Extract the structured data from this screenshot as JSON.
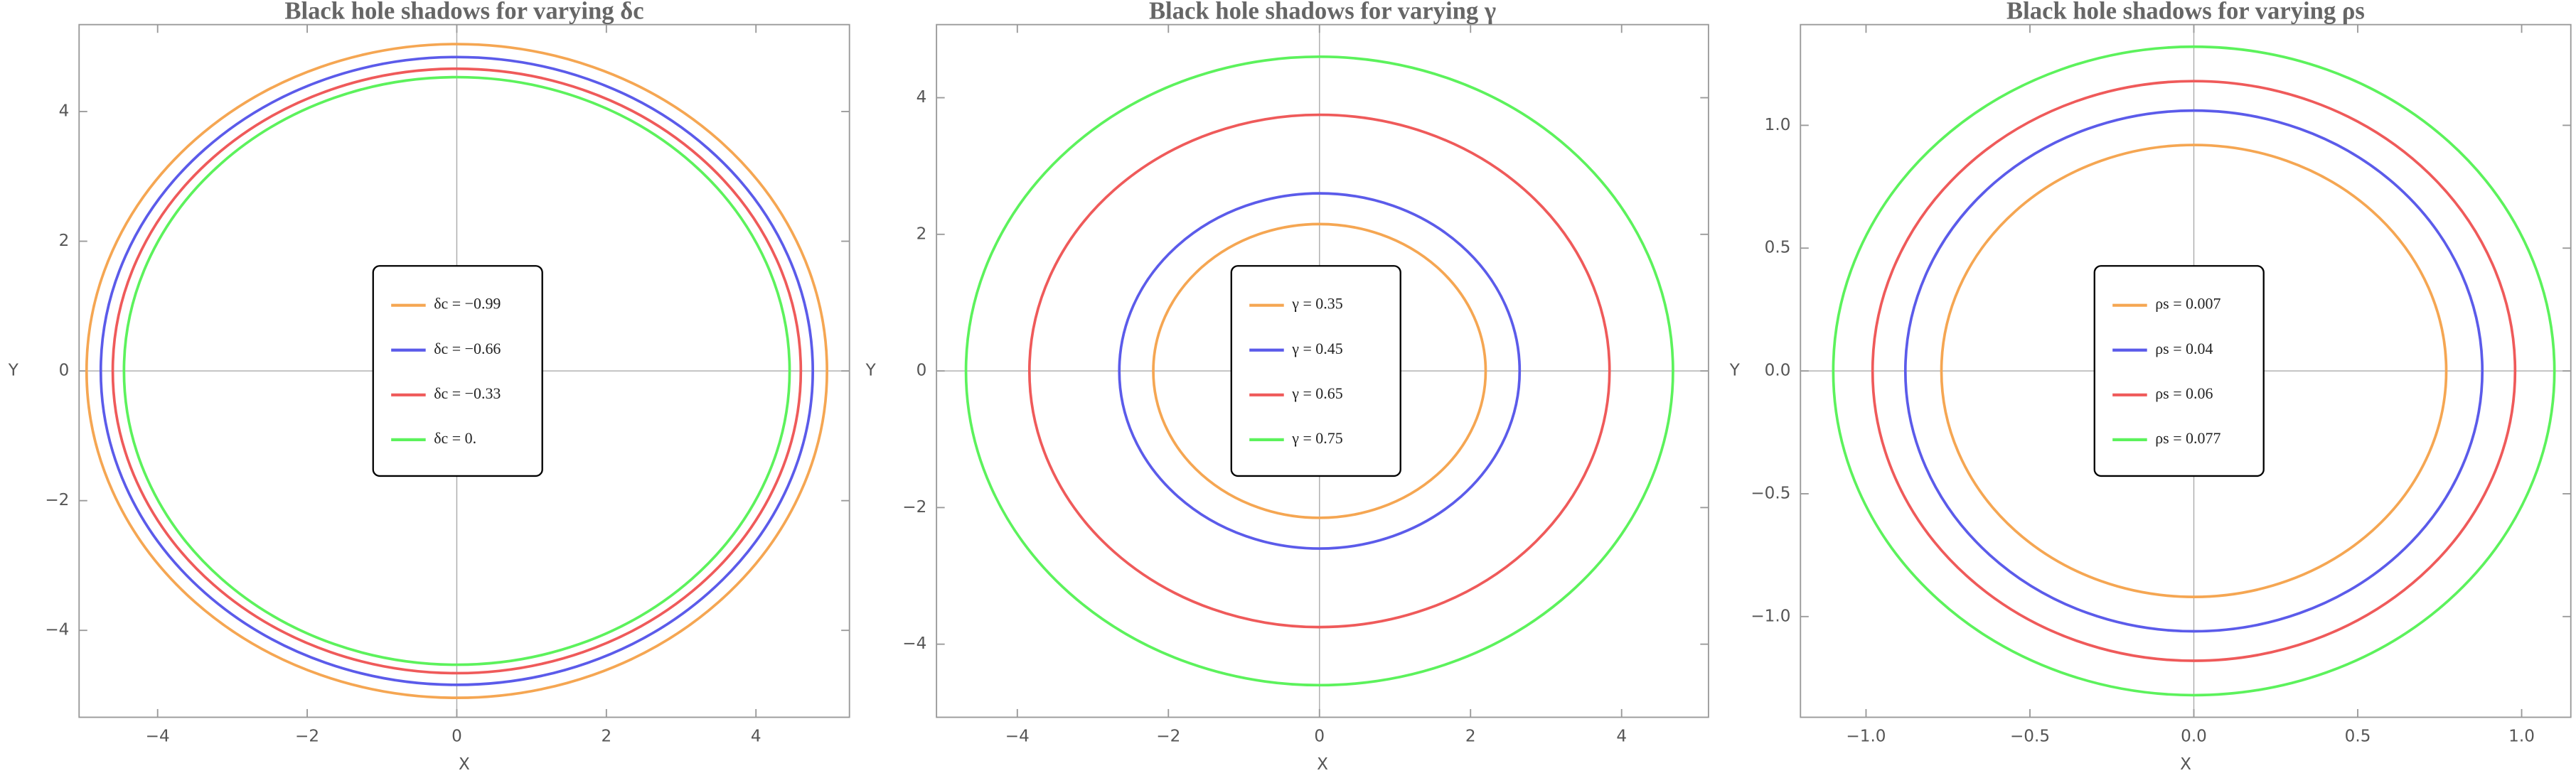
{
  "chart_data": [
    {
      "type": "shadow",
      "title": "Black hole shadows for varying δc",
      "xlabel": "X",
      "ylabel": "Y",
      "xlim": [
        -5.05,
        5.25
      ],
      "ylim": [
        -5.34,
        5.34
      ],
      "xticks": [
        {
          "value": -4,
          "label": "−4"
        },
        {
          "value": -2,
          "label": "−2"
        },
        0,
        2,
        4
      ],
      "yticks": [
        {
          "value": -4,
          "label": "−4"
        },
        {
          "value": -2,
          "label": "−2"
        },
        0,
        2,
        4
      ],
      "series": [
        {
          "name": "δc = −0.99",
          "color": "#f5a652",
          "x_radius": 4.95,
          "y_radius": 5.04
        },
        {
          "name": "δc = −0.66",
          "color": "#5b5bea",
          "x_radius": 4.76,
          "y_radius": 4.84
        },
        {
          "name": "δc = −0.33",
          "color": "#ef5a5a",
          "x_radius": 4.6,
          "y_radius": 4.66
        },
        {
          "name": "δc = 0.",
          "color": "#5cf25c",
          "x_radius": 4.45,
          "y_radius": 4.53
        }
      ]
    },
    {
      "type": "shadow",
      "title": "Black hole shadows for varying γ",
      "xlabel": "X",
      "ylabel": "Y",
      "xlim": [
        -5.07,
        5.15
      ],
      "ylim": [
        -5.07,
        5.07
      ],
      "xticks": [
        {
          "value": -4,
          "label": "−4"
        },
        {
          "value": -2,
          "label": "−2"
        },
        0,
        2,
        4
      ],
      "yticks": [
        {
          "value": -4,
          "label": "−4"
        },
        {
          "value": -2,
          "label": "−2"
        },
        0,
        2,
        4
      ],
      "series": [
        {
          "name": "γ = 0.35",
          "color": "#f5a652",
          "x_radius": 2.2,
          "y_radius": 2.15
        },
        {
          "name": "γ = 0.45",
          "color": "#5b5bea",
          "x_radius": 2.65,
          "y_radius": 2.6
        },
        {
          "name": "γ = 0.65",
          "color": "#ef5a5a",
          "x_radius": 3.84,
          "y_radius": 3.75
        },
        {
          "name": "γ = 0.75",
          "color": "#5cf25c",
          "x_radius": 4.68,
          "y_radius": 4.6
        }
      ]
    },
    {
      "type": "shadow",
      "title": "Black hole shadows for varying ρs",
      "xlabel": "X",
      "ylabel": "Y",
      "xlim": [
        -1.2,
        1.15
      ],
      "ylim": [
        -1.41,
        1.41
      ],
      "xticks": [
        {
          "value": -1,
          "label": "−1.0"
        },
        {
          "value": -0.5,
          "label": "−0.5"
        },
        {
          "value": 0,
          "label": "0.0"
        },
        0.5,
        {
          "value": 1,
          "label": "1.0"
        }
      ],
      "yticks": [
        {
          "value": -1,
          "label": "−1.0"
        },
        {
          "value": -0.5,
          "label": "−0.5"
        },
        {
          "value": 0,
          "label": "0.0"
        },
        0.5,
        {
          "value": 1,
          "label": "1.0"
        }
      ],
      "series": [
        {
          "name": "ρs = 0.007",
          "color": "#f5a652",
          "x_radius": 0.77,
          "y_radius": 0.92
        },
        {
          "name": "ρs = 0.04",
          "color": "#5b5bea",
          "x_radius": 0.88,
          "y_radius": 1.06
        },
        {
          "name": "ρs = 0.06",
          "color": "#ef5a5a",
          "x_radius": 0.98,
          "y_radius": 1.18
        },
        {
          "name": "ρs = 0.077",
          "color": "#5cf25c",
          "x_radius": 1.1,
          "y_radius": 1.32
        }
      ]
    }
  ]
}
